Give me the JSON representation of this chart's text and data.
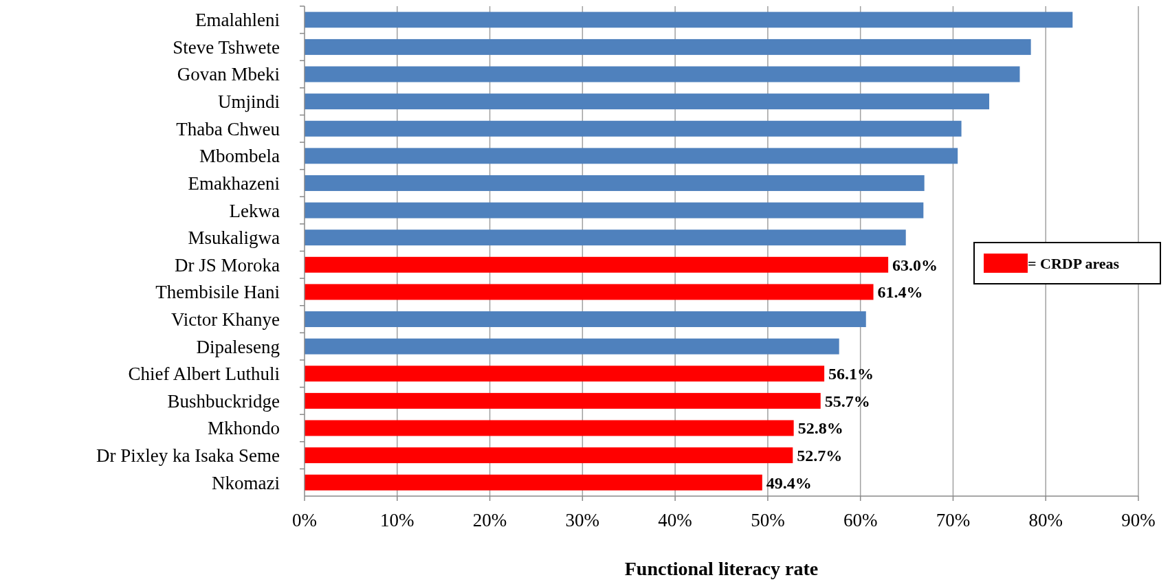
{
  "chart_data": {
    "type": "bar",
    "orientation": "horizontal",
    "xlabel": "Functional literacy rate",
    "categories": [
      "Emalahleni",
      "Steve Tshwete",
      "Govan Mbeki",
      "Umjindi",
      "Thaba Chweu",
      "Mbombela",
      "Emakhazeni",
      "Lekwa",
      "Msukaligwa",
      "Dr JS Moroka",
      "Thembisile Hani",
      "Victor Khanye",
      "Dipaleseng",
      "Chief Albert Luthuli",
      "Bushbuckridge",
      "Mkhondo",
      "Dr Pixley ka Isaka Seme",
      "Nkomazi"
    ],
    "series": [
      {
        "color": "#4f81bd",
        "values": [
          82.9,
          78.4,
          77.2,
          73.9,
          70.9,
          70.5,
          66.9,
          66.8,
          64.9,
          null,
          null,
          60.6,
          57.7,
          null,
          null,
          null,
          null,
          null
        ]
      },
      {
        "name": "= CRDP areas",
        "color": "#ff0000",
        "values": [
          null,
          null,
          null,
          null,
          null,
          null,
          null,
          null,
          null,
          63.0,
          61.4,
          null,
          null,
          56.1,
          55.7,
          52.8,
          52.7,
          49.4
        ],
        "value_labels": [
          null,
          null,
          null,
          null,
          null,
          null,
          null,
          null,
          null,
          "63.0%",
          "61.4%",
          null,
          null,
          "56.1%",
          "55.7%",
          "52.8%",
          "52.7%",
          "49.4%"
        ]
      }
    ],
    "xlim": [
      0,
      90
    ],
    "xticks": [
      {
        "value": 0,
        "label": "0%"
      },
      {
        "value": 10,
        "label": "10%"
      },
      {
        "value": 20,
        "label": "20%"
      },
      {
        "value": 30,
        "label": "30%"
      },
      {
        "value": 40,
        "label": "40%"
      },
      {
        "value": 50,
        "label": "50%"
      },
      {
        "value": 60,
        "label": "60%"
      },
      {
        "value": 70,
        "label": "70%"
      },
      {
        "value": 80,
        "label": "80%"
      },
      {
        "value": 90,
        "label": "90%"
      }
    ],
    "grid": "x",
    "legend": "right"
  }
}
